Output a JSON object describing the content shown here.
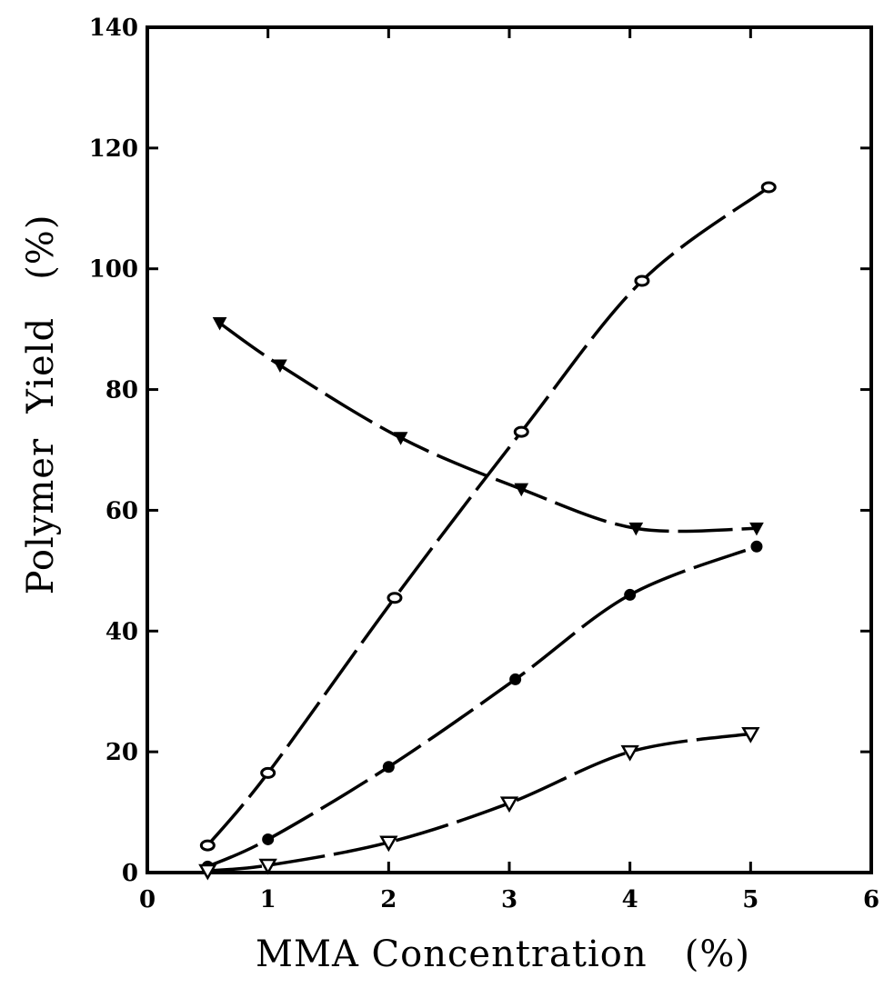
{
  "chart_data": {
    "type": "line",
    "xlabel": "MMA Concentration   (%)",
    "ylabel": "Polymer  Yield   (%)",
    "xlim": [
      0,
      6
    ],
    "ylim": [
      0,
      140
    ],
    "x_ticks": [
      "0",
      "1",
      "2",
      "3",
      "4",
      "5",
      "6"
    ],
    "y_ticks": [
      "0",
      "20",
      "40",
      "60",
      "80",
      "100",
      "120",
      "140"
    ],
    "grid": false,
    "legend": "none",
    "series": [
      {
        "marker": "open-circle",
        "line": "long-dash",
        "points": [
          [
            0.5,
            4.5
          ],
          [
            1.0,
            16.5
          ],
          [
            2.05,
            45.5
          ],
          [
            3.1,
            73.0
          ],
          [
            4.1,
            98.0
          ],
          [
            5.15,
            113.5
          ]
        ]
      },
      {
        "marker": "filled-triangle-down",
        "line": "long-dash",
        "points": [
          [
            0.6,
            91.0
          ],
          [
            1.1,
            84.0
          ],
          [
            2.1,
            72.0
          ],
          [
            3.1,
            63.5
          ],
          [
            4.05,
            57.0
          ],
          [
            5.05,
            57.0
          ]
        ]
      },
      {
        "marker": "filled-circle",
        "line": "long-dash",
        "points": [
          [
            0.5,
            1.0
          ],
          [
            1.0,
            5.5
          ],
          [
            2.0,
            17.5
          ],
          [
            3.05,
            32.0
          ],
          [
            4.0,
            46.0
          ],
          [
            5.05,
            54.0
          ]
        ]
      },
      {
        "marker": "open-triangle-down",
        "line": "long-dash",
        "points": [
          [
            0.5,
            0.3
          ],
          [
            1.0,
            1.2
          ],
          [
            2.0,
            5.0
          ],
          [
            3.0,
            11.5
          ],
          [
            4.0,
            20.0
          ],
          [
            5.0,
            23.0
          ]
        ]
      }
    ]
  }
}
